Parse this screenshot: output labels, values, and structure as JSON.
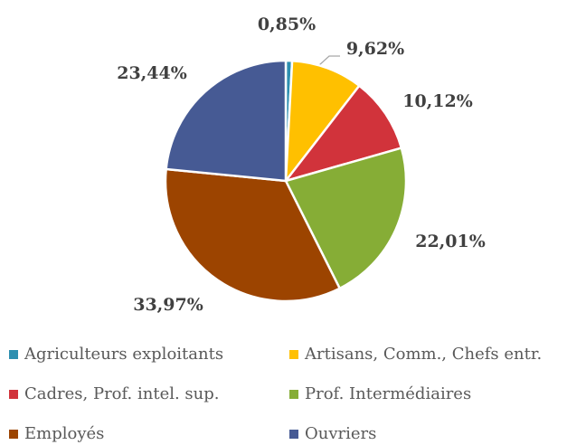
{
  "chart_data": {
    "type": "pie",
    "categories": [
      "Agriculteurs exploitants",
      "Artisans, Comm., Chefs entr.",
      "Cadres, Prof. intel. sup.",
      "Prof. Intermédiaires",
      "Employés",
      "Ouvriers"
    ],
    "values": [
      0.85,
      9.62,
      10.12,
      22.01,
      33.97,
      23.44
    ],
    "value_labels": [
      "0,85%",
      "9,62%",
      "10,12%",
      "22,01%",
      "33,97%",
      "23,44%"
    ],
    "colors": [
      "#2e8fb0",
      "#ffc000",
      "#d1333b",
      "#86ad36",
      "#9c4400",
      "#465a94"
    ],
    "legend": "bottom"
  }
}
